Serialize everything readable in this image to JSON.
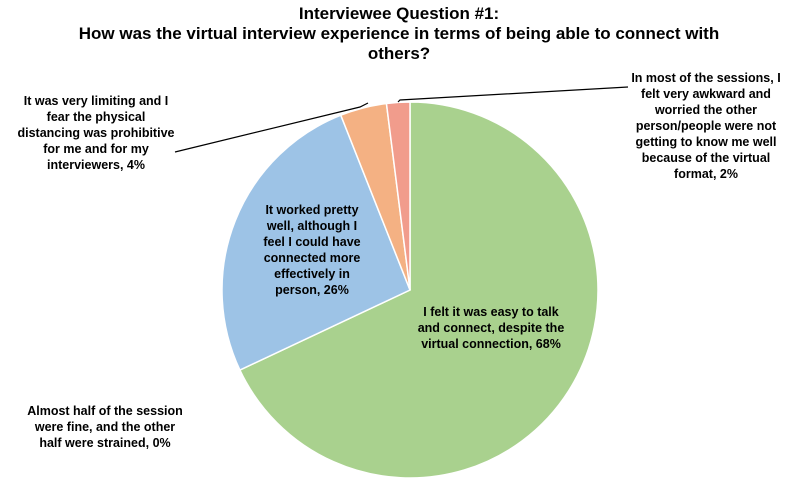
{
  "chart_data": {
    "type": "pie",
    "title": "Interviewee Question #1:",
    "subtitle": "How was the virtual interview experience in terms of being able to connect with others?",
    "slices": [
      {
        "label": "I felt it was easy to talk and connect, despite the virtual connection, 68%",
        "value": 68,
        "color": "#a9d18e"
      },
      {
        "label": "Almost half of the session were fine, and the other half were strained, 0%",
        "value": 0,
        "color": "#ffd966"
      },
      {
        "label": "It worked pretty well, although I feel I could have connected more effectively in person, 26%",
        "value": 26,
        "color": "#9dc3e6"
      },
      {
        "label": "It was very limiting and I fear the physical distancing was prohibitive for me and for my interviewers, 4%",
        "value": 4,
        "color": "#f4b183"
      },
      {
        "label": "In most of the sessions, I felt very awkward and worried the other person/people were not getting to know me well because of the virtual format, 2%",
        "value": 2,
        "color": "#f19c8c"
      }
    ]
  },
  "labels": {
    "title_line1": "Interviewee Question #1:",
    "title_line2": "How was the virtual interview experience in terms of being able to connect with",
    "title_line3": "others?",
    "s0_l1": "I felt it was easy to talk",
    "s0_l2": "and connect, despite the",
    "s0_l3": "virtual connection, 68%",
    "s1_l1": "Almost half of the session",
    "s1_l2": "were fine, and the other",
    "s1_l3": "half were strained, 0%",
    "s2_l1": "It worked pretty",
    "s2_l2": "well, although I",
    "s2_l3": "feel I could have",
    "s2_l4": "connected more",
    "s2_l5": "effectively in",
    "s2_l6": "person, 26%",
    "s3_l1": "It was very limiting and I",
    "s3_l2": "fear the physical",
    "s3_l3": "distancing was prohibitive",
    "s3_l4": "for me and for my",
    "s3_l5": "interviewers, 4%",
    "s4_l1": "In most of the sessions, I",
    "s4_l2": "felt very awkward and",
    "s4_l3": "worried the other",
    "s4_l4": "person/people were not",
    "s4_l5": "getting to know me well",
    "s4_l6": "because of the virtual",
    "s4_l7": "format, 2%"
  }
}
